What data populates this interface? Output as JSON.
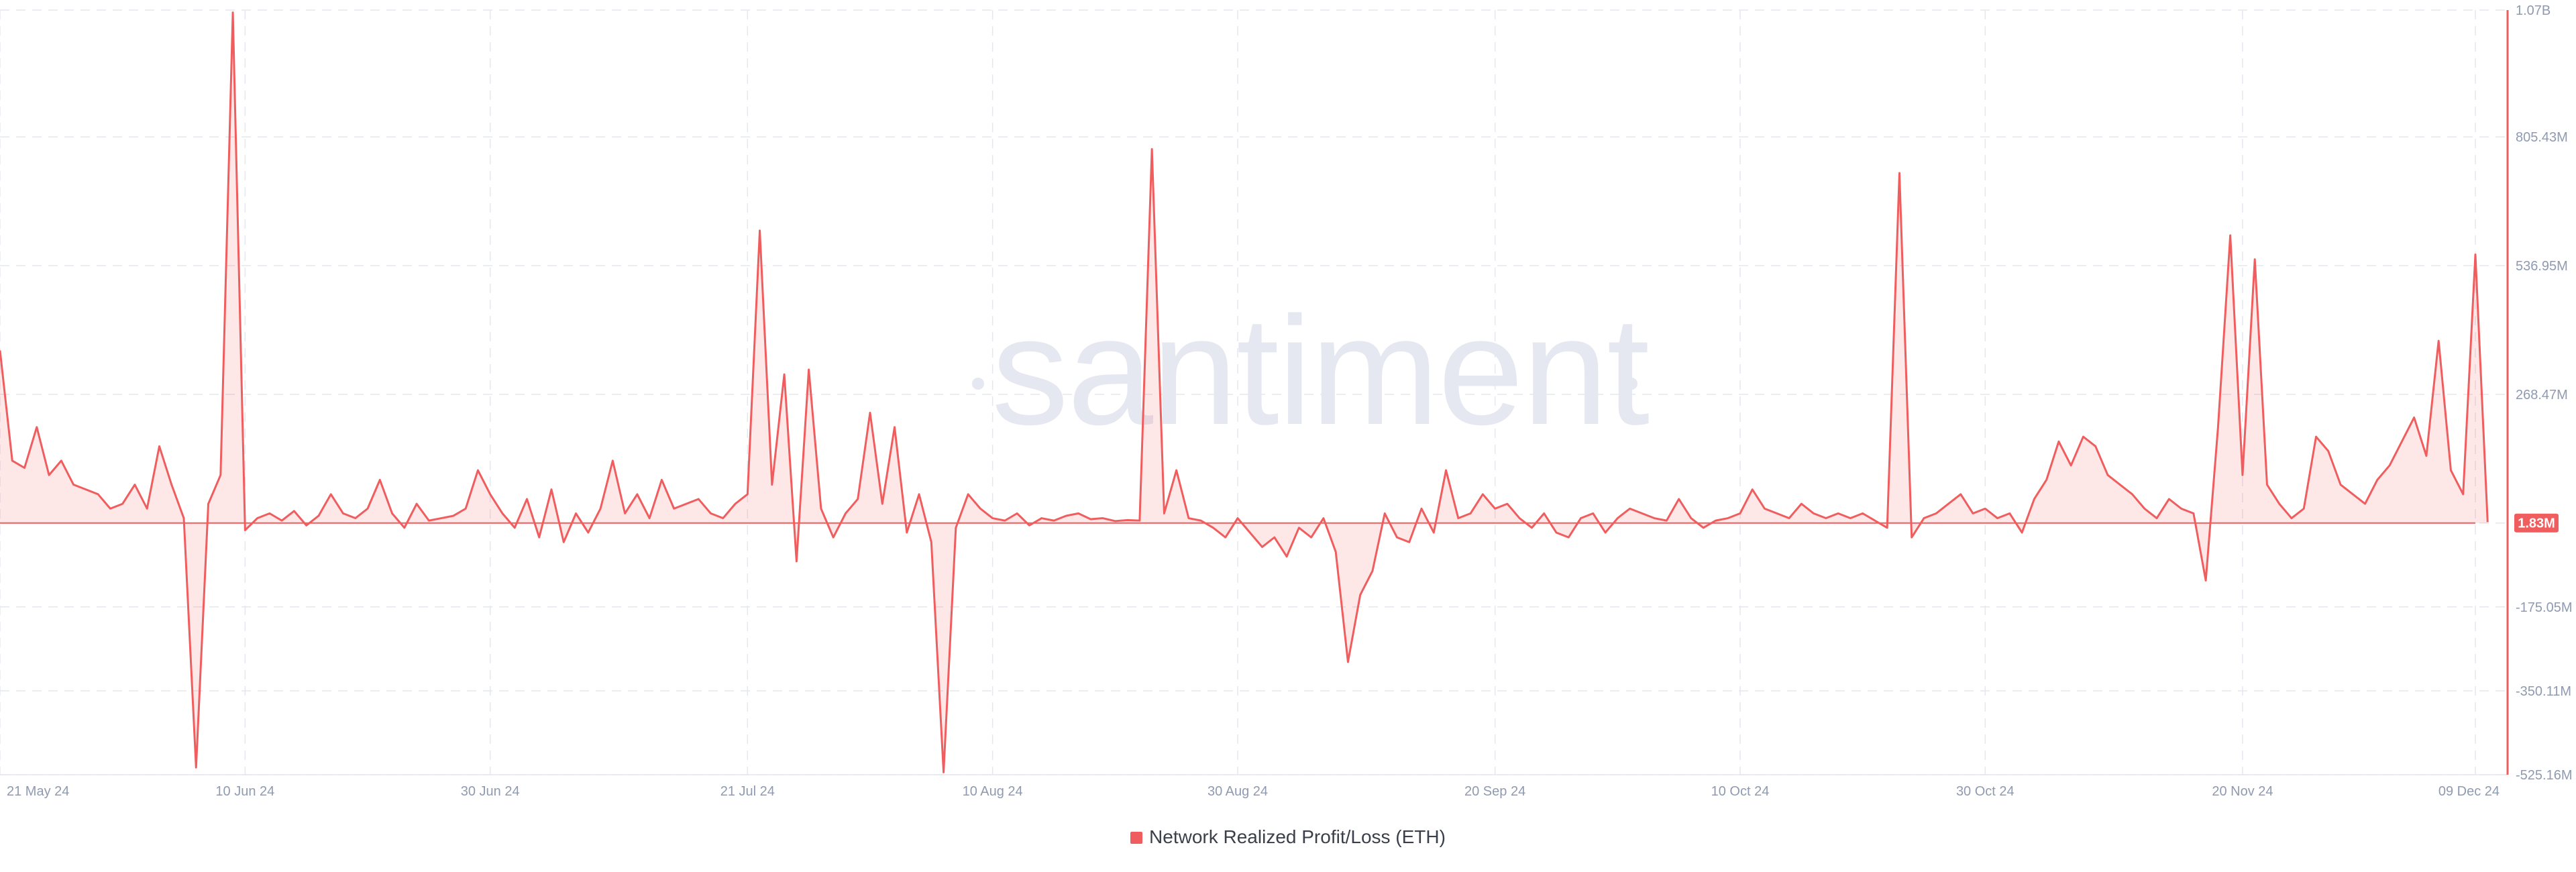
{
  "chart_data": {
    "type": "area",
    "watermark": "santiment",
    "series": [
      {
        "name": "Network Realized Profit/Loss (ETH)",
        "color": "#f05d5e"
      }
    ],
    "current_value_label": "1.83M",
    "y_ticks": [
      {
        "value": 1070000000,
        "label": "1.07B"
      },
      {
        "value": 805430000,
        "label": "805.43M"
      },
      {
        "value": 536950000,
        "label": "536.95M"
      },
      {
        "value": 268470000,
        "label": "268.47M"
      },
      {
        "value": 0,
        "label": ""
      },
      {
        "value": -175050000,
        "label": "-175.05M"
      },
      {
        "value": -350110000,
        "label": "-350.11M"
      },
      {
        "value": -525160000,
        "label": "-525.16M"
      }
    ],
    "ylim": [
      -525160000,
      1070000000
    ],
    "x_ticks": [
      {
        "date": "2024-05-21",
        "label": "21 May 24"
      },
      {
        "date": "2024-06-10",
        "label": "10 Jun 24"
      },
      {
        "date": "2024-06-30",
        "label": "30 Jun 24"
      },
      {
        "date": "2024-07-21",
        "label": "21 Jul 24"
      },
      {
        "date": "2024-08-10",
        "label": "10 Aug 24"
      },
      {
        "date": "2024-08-30",
        "label": "30 Aug 24"
      },
      {
        "date": "2024-09-20",
        "label": "20 Sep 24"
      },
      {
        "date": "2024-10-10",
        "label": "10 Oct 24"
      },
      {
        "date": "2024-10-30",
        "label": "30 Oct 24"
      },
      {
        "date": "2024-11-20",
        "label": "20 Nov 24"
      },
      {
        "date": "2024-12-09",
        "label": "09 Dec 24"
      }
    ],
    "xlim": [
      "2024-05-21",
      "2024-12-09"
    ],
    "grid": true,
    "legend": "bottom-center",
    "points": [
      [
        "2024-05-21",
        360000000
      ],
      [
        "2024-05-22",
        130000000
      ],
      [
        "2024-05-23",
        115000000
      ],
      [
        "2024-05-24",
        200000000
      ],
      [
        "2024-05-25",
        100000000
      ],
      [
        "2024-05-26",
        130000000
      ],
      [
        "2024-05-27",
        80000000
      ],
      [
        "2024-05-28",
        70000000
      ],
      [
        "2024-05-29",
        60000000
      ],
      [
        "2024-05-30",
        30000000
      ],
      [
        "2024-05-31",
        40000000
      ],
      [
        "2024-06-01",
        80000000
      ],
      [
        "2024-06-02",
        30000000
      ],
      [
        "2024-06-03",
        160000000
      ],
      [
        "2024-06-04",
        80000000
      ],
      [
        "2024-06-05",
        10000000
      ],
      [
        "2024-06-06",
        -510000000
      ],
      [
        "2024-06-07",
        40000000
      ],
      [
        "2024-06-08",
        100000000
      ],
      [
        "2024-06-09",
        1065000000
      ],
      [
        "2024-06-10",
        -15000000
      ],
      [
        "2024-06-11",
        10000000
      ],
      [
        "2024-06-12",
        20000000
      ],
      [
        "2024-06-13",
        5000000
      ],
      [
        "2024-06-14",
        25000000
      ],
      [
        "2024-06-15",
        -5000000
      ],
      [
        "2024-06-16",
        15000000
      ],
      [
        "2024-06-17",
        60000000
      ],
      [
        "2024-06-18",
        20000000
      ],
      [
        "2024-06-19",
        10000000
      ],
      [
        "2024-06-20",
        30000000
      ],
      [
        "2024-06-21",
        90000000
      ],
      [
        "2024-06-22",
        20000000
      ],
      [
        "2024-06-23",
        -10000000
      ],
      [
        "2024-06-24",
        40000000
      ],
      [
        "2024-06-25",
        5000000
      ],
      [
        "2024-06-26",
        10000000
      ],
      [
        "2024-06-27",
        15000000
      ],
      [
        "2024-06-28",
        30000000
      ],
      [
        "2024-06-29",
        110000000
      ],
      [
        "2024-06-30",
        60000000
      ],
      [
        "2024-07-01",
        20000000
      ],
      [
        "2024-07-02",
        -10000000
      ],
      [
        "2024-07-03",
        50000000
      ],
      [
        "2024-07-04",
        -30000000
      ],
      [
        "2024-07-05",
        70000000
      ],
      [
        "2024-07-06",
        -40000000
      ],
      [
        "2024-07-07",
        20000000
      ],
      [
        "2024-07-08",
        -20000000
      ],
      [
        "2024-07-09",
        30000000
      ],
      [
        "2024-07-10",
        130000000
      ],
      [
        "2024-07-11",
        20000000
      ],
      [
        "2024-07-12",
        60000000
      ],
      [
        "2024-07-13",
        10000000
      ],
      [
        "2024-07-14",
        90000000
      ],
      [
        "2024-07-15",
        30000000
      ],
      [
        "2024-07-16",
        40000000
      ],
      [
        "2024-07-17",
        50000000
      ],
      [
        "2024-07-18",
        20000000
      ],
      [
        "2024-07-19",
        10000000
      ],
      [
        "2024-07-20",
        40000000
      ],
      [
        "2024-07-21",
        60000000
      ],
      [
        "2024-07-22",
        610000000
      ],
      [
        "2024-07-23",
        80000000
      ],
      [
        "2024-07-24",
        310000000
      ],
      [
        "2024-07-25",
        -80000000
      ],
      [
        "2024-07-26",
        320000000
      ],
      [
        "2024-07-27",
        30000000
      ],
      [
        "2024-07-28",
        -30000000
      ],
      [
        "2024-07-29",
        20000000
      ],
      [
        "2024-07-30",
        50000000
      ],
      [
        "2024-07-31",
        230000000
      ],
      [
        "2024-08-01",
        40000000
      ],
      [
        "2024-08-02",
        200000000
      ],
      [
        "2024-08-03",
        -20000000
      ],
      [
        "2024-08-04",
        60000000
      ],
      [
        "2024-08-05",
        -40000000
      ],
      [
        "2024-08-06",
        -520000000
      ],
      [
        "2024-08-07",
        -10000000
      ],
      [
        "2024-08-08",
        60000000
      ],
      [
        "2024-08-09",
        30000000
      ],
      [
        "2024-08-10",
        10000000
      ],
      [
        "2024-08-11",
        5000000
      ],
      [
        "2024-08-12",
        20000000
      ],
      [
        "2024-08-13",
        -5000000
      ],
      [
        "2024-08-14",
        10000000
      ],
      [
        "2024-08-15",
        5000000
      ],
      [
        "2024-08-16",
        15000000
      ],
      [
        "2024-08-17",
        20000000
      ],
      [
        "2024-08-18",
        8000000
      ],
      [
        "2024-08-19",
        10000000
      ],
      [
        "2024-08-20",
        4000000
      ],
      [
        "2024-08-21",
        6000000
      ],
      [
        "2024-08-22",
        5000000
      ],
      [
        "2024-08-23",
        780000000
      ],
      [
        "2024-08-24",
        20000000
      ],
      [
        "2024-08-25",
        110000000
      ],
      [
        "2024-08-26",
        10000000
      ],
      [
        "2024-08-27",
        5000000
      ],
      [
        "2024-08-28",
        -10000000
      ],
      [
        "2024-08-29",
        -30000000
      ],
      [
        "2024-08-30",
        10000000
      ],
      [
        "2024-08-31",
        -20000000
      ],
      [
        "2024-09-01",
        -50000000
      ],
      [
        "2024-09-02",
        -30000000
      ],
      [
        "2024-09-03",
        -70000000
      ],
      [
        "2024-09-04",
        -10000000
      ],
      [
        "2024-09-05",
        -30000000
      ],
      [
        "2024-09-06",
        10000000
      ],
      [
        "2024-09-07",
        -60000000
      ],
      [
        "2024-09-08",
        -290000000
      ],
      [
        "2024-09-09",
        -150000000
      ],
      [
        "2024-09-10",
        -100000000
      ],
      [
        "2024-09-11",
        20000000
      ],
      [
        "2024-09-12",
        -30000000
      ],
      [
        "2024-09-13",
        -40000000
      ],
      [
        "2024-09-14",
        30000000
      ],
      [
        "2024-09-15",
        -20000000
      ],
      [
        "2024-09-16",
        110000000
      ],
      [
        "2024-09-17",
        10000000
      ],
      [
        "2024-09-18",
        20000000
      ],
      [
        "2024-09-19",
        60000000
      ],
      [
        "2024-09-20",
        30000000
      ],
      [
        "2024-09-21",
        40000000
      ],
      [
        "2024-09-22",
        10000000
      ],
      [
        "2024-09-23",
        -10000000
      ],
      [
        "2024-09-24",
        20000000
      ],
      [
        "2024-09-25",
        -20000000
      ],
      [
        "2024-09-26",
        -30000000
      ],
      [
        "2024-09-27",
        10000000
      ],
      [
        "2024-09-28",
        20000000
      ],
      [
        "2024-09-29",
        -20000000
      ],
      [
        "2024-09-30",
        10000000
      ],
      [
        "2024-10-01",
        30000000
      ],
      [
        "2024-10-02",
        20000000
      ],
      [
        "2024-10-03",
        10000000
      ],
      [
        "2024-10-04",
        5000000
      ],
      [
        "2024-10-05",
        50000000
      ],
      [
        "2024-10-06",
        10000000
      ],
      [
        "2024-10-07",
        -10000000
      ],
      [
        "2024-10-08",
        5000000
      ],
      [
        "2024-10-09",
        10000000
      ],
      [
        "2024-10-10",
        20000000
      ],
      [
        "2024-10-11",
        70000000
      ],
      [
        "2024-10-12",
        30000000
      ],
      [
        "2024-10-13",
        20000000
      ],
      [
        "2024-10-14",
        10000000
      ],
      [
        "2024-10-15",
        40000000
      ],
      [
        "2024-10-16",
        20000000
      ],
      [
        "2024-10-17",
        10000000
      ],
      [
        "2024-10-18",
        20000000
      ],
      [
        "2024-10-19",
        10000000
      ],
      [
        "2024-10-20",
        20000000
      ],
      [
        "2024-10-21",
        5000000
      ],
      [
        "2024-10-22",
        -10000000
      ],
      [
        "2024-10-23",
        730000000
      ],
      [
        "2024-10-24",
        -30000000
      ],
      [
        "2024-10-25",
        10000000
      ],
      [
        "2024-10-26",
        20000000
      ],
      [
        "2024-10-27",
        40000000
      ],
      [
        "2024-10-28",
        60000000
      ],
      [
        "2024-10-29",
        20000000
      ],
      [
        "2024-10-30",
        30000000
      ],
      [
        "2024-10-31",
        10000000
      ],
      [
        "2024-11-01",
        20000000
      ],
      [
        "2024-11-02",
        -20000000
      ],
      [
        "2024-11-03",
        50000000
      ],
      [
        "2024-11-04",
        90000000
      ],
      [
        "2024-11-05",
        170000000
      ],
      [
        "2024-11-06",
        120000000
      ],
      [
        "2024-11-07",
        180000000
      ],
      [
        "2024-11-08",
        160000000
      ],
      [
        "2024-11-09",
        100000000
      ],
      [
        "2024-11-10",
        80000000
      ],
      [
        "2024-11-11",
        60000000
      ],
      [
        "2024-11-12",
        30000000
      ],
      [
        "2024-11-13",
        10000000
      ],
      [
        "2024-11-14",
        50000000
      ],
      [
        "2024-11-15",
        30000000
      ],
      [
        "2024-11-16",
        20000000
      ],
      [
        "2024-11-17",
        -120000000
      ],
      [
        "2024-11-18",
        200000000
      ],
      [
        "2024-11-19",
        600000000
      ],
      [
        "2024-11-20",
        100000000
      ],
      [
        "2024-11-21",
        550000000
      ],
      [
        "2024-11-22",
        80000000
      ],
      [
        "2024-11-23",
        40000000
      ],
      [
        "2024-11-24",
        10000000
      ],
      [
        "2024-11-25",
        30000000
      ],
      [
        "2024-11-26",
        180000000
      ],
      [
        "2024-11-27",
        150000000
      ],
      [
        "2024-11-28",
        80000000
      ],
      [
        "2024-11-29",
        60000000
      ],
      [
        "2024-11-30",
        40000000
      ],
      [
        "2024-12-01",
        90000000
      ],
      [
        "2024-12-02",
        120000000
      ],
      [
        "2024-12-03",
        170000000
      ],
      [
        "2024-12-04",
        220000000
      ],
      [
        "2024-12-05",
        140000000
      ],
      [
        "2024-12-06",
        380000000
      ],
      [
        "2024-12-07",
        110000000
      ],
      [
        "2024-12-08",
        60000000
      ],
      [
        "2024-12-09",
        560000000
      ],
      [
        "2024-12-10",
        1830000
      ]
    ]
  }
}
